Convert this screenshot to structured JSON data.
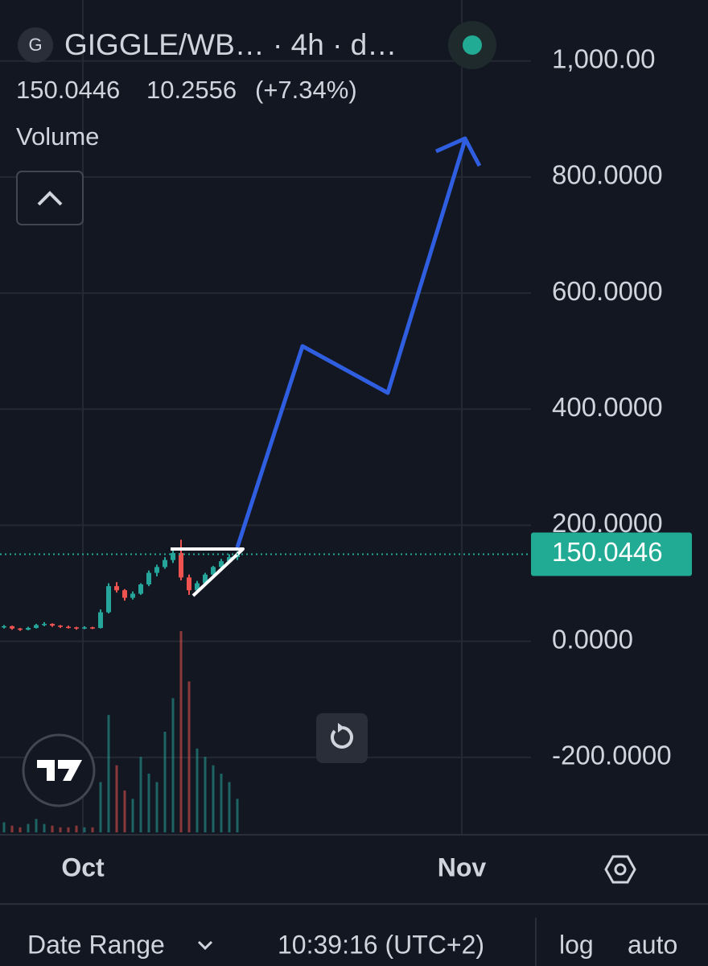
{
  "header": {
    "icon_letter": "G",
    "symbol": "GIGGLE/WB… · 4h · d…",
    "price": "150.0446",
    "change": "10.2556",
    "change_pct": "(+7.34%)",
    "indicator": "Volume"
  },
  "chart_data": {
    "type": "candlestick",
    "candles": [
      [
        24,
        28,
        22,
        26
      ],
      [
        26,
        27,
        20,
        22
      ],
      [
        22,
        23,
        18,
        20
      ],
      [
        20,
        25,
        19,
        23
      ],
      [
        23,
        30,
        22,
        28
      ],
      [
        28,
        33,
        26,
        30
      ],
      [
        30,
        31,
        25,
        27
      ],
      [
        27,
        28,
        23,
        25
      ],
      [
        25,
        27,
        22,
        24
      ],
      [
        24,
        25,
        20,
        22
      ],
      [
        22,
        26,
        21,
        24
      ],
      [
        24,
        25,
        21,
        23
      ],
      [
        23,
        55,
        22,
        50
      ],
      [
        50,
        100,
        48,
        95
      ],
      [
        95,
        102,
        84,
        88
      ],
      [
        88,
        90,
        70,
        75
      ],
      [
        75,
        86,
        72,
        82
      ],
      [
        82,
        100,
        80,
        98
      ],
      [
        98,
        122,
        95,
        118
      ],
      [
        118,
        132,
        112,
        128
      ],
      [
        128,
        145,
        125,
        140
      ],
      [
        140,
        160,
        135,
        152
      ],
      [
        152,
        175,
        105,
        110
      ],
      [
        110,
        115,
        80,
        88
      ],
      [
        88,
        104,
        85,
        100
      ],
      [
        100,
        118,
        96,
        115
      ],
      [
        115,
        130,
        110,
        128
      ],
      [
        128,
        142,
        125,
        138
      ],
      [
        138,
        150,
        134,
        145
      ],
      [
        145,
        155,
        140,
        150.0446
      ]
    ],
    "volume": [
      6,
      4,
      3,
      5,
      8,
      5,
      4,
      3,
      3,
      4,
      3,
      3,
      30,
      70,
      40,
      25,
      20,
      45,
      35,
      30,
      60,
      80,
      120,
      90,
      50,
      45,
      40,
      35,
      30,
      20
    ],
    "up_color": "#26a69a",
    "down_color": "#ef5350",
    "ylim": [
      -332,
      1105
    ],
    "yticks": [
      {
        "value": -200,
        "label": "-200.0000"
      },
      {
        "value": 0,
        "label": "0.0000"
      },
      {
        "value": 200,
        "label": "200.0000"
      },
      {
        "value": 400,
        "label": "400.0000"
      },
      {
        "value": 600,
        "label": "600.0000"
      },
      {
        "value": 800,
        "label": "800.0000"
      },
      {
        "value": 1000,
        "label": "1,000.00"
      }
    ],
    "time_labels": [
      "Oct",
      "Nov"
    ],
    "last_price": {
      "value": 150.0446,
      "label": "150.0446"
    },
    "grid": true
  },
  "footer": {
    "date_range": "Date Range",
    "time": "10:39:16 (UTC+2)",
    "log": "log",
    "auto": "auto"
  }
}
